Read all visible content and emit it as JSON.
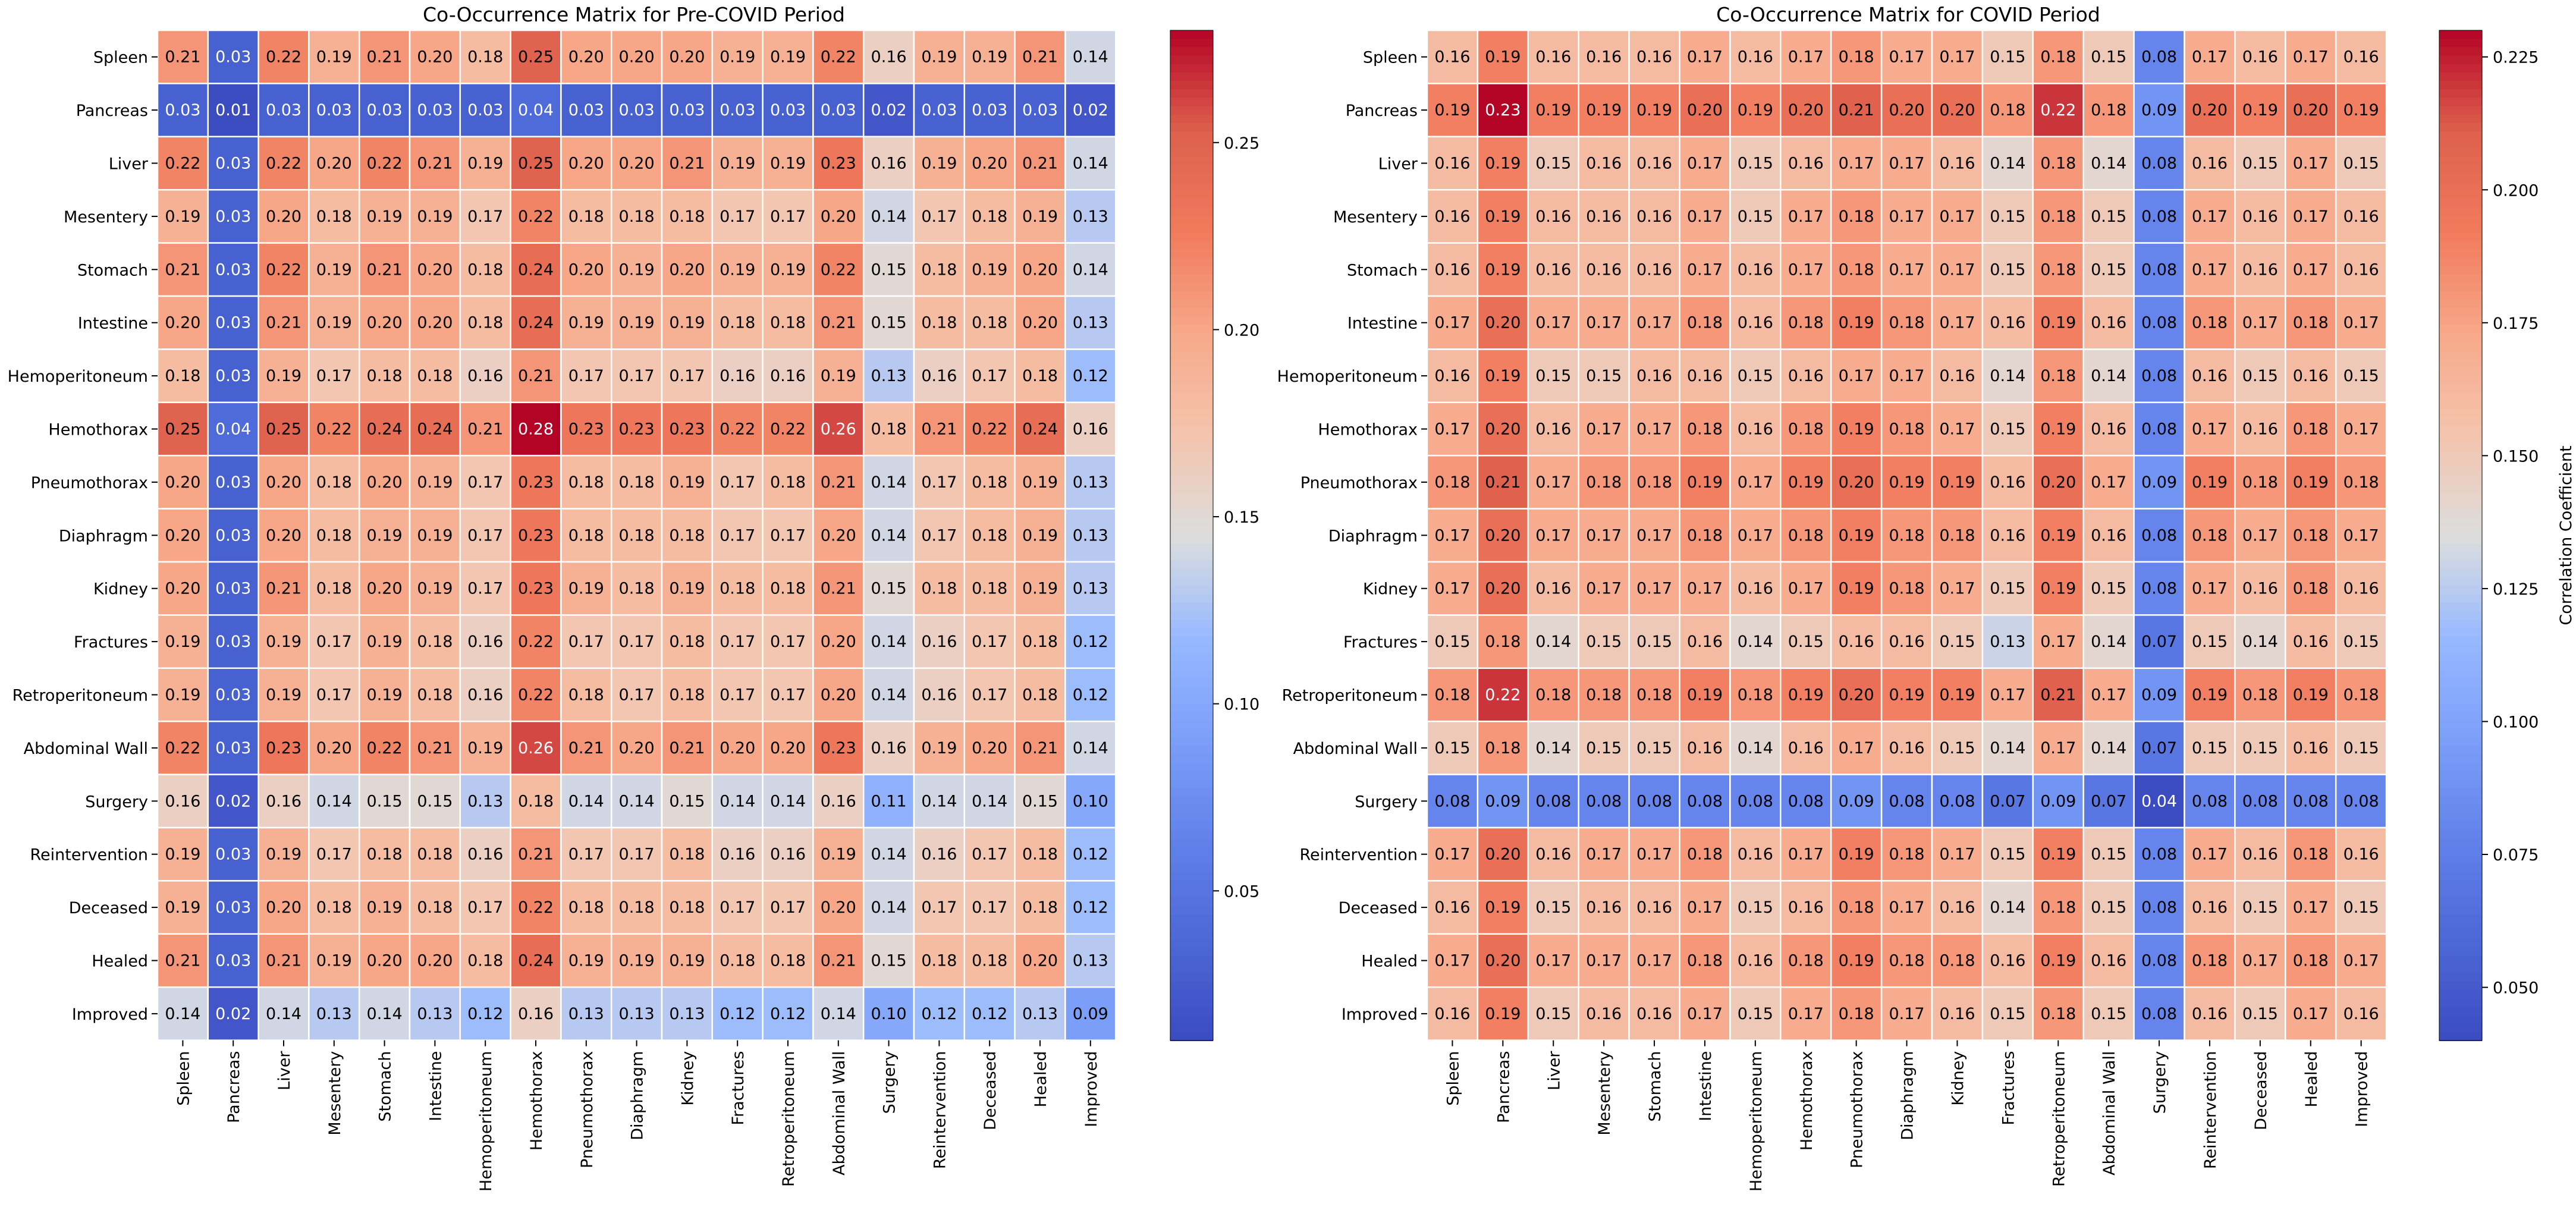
{
  "labels": [
    "Spleen",
    "Pancreas",
    "Liver",
    "Mesentery",
    "Stomach",
    "Intestine",
    "Hemoperitoneum",
    "Hemothorax",
    "Pneumothorax",
    "Diaphragm",
    "Kidney",
    "Fractures",
    "Retroperitoneum",
    "Abdominal Wall",
    "Surgery",
    "Reintervention",
    "Deceased",
    "Healed",
    "Improved"
  ],
  "colors": {
    "low": "#3b4cc0",
    "mid": "#dddddd",
    "high": "#b40426",
    "grid": "#ffffff",
    "text": "#000000"
  },
  "chart_data": [
    {
      "type": "heatmap",
      "title": "Co-Occurrence Matrix for Pre-COVID Period",
      "colorbar": {
        "vmin": 0.01,
        "vmax": 0.28,
        "ticks": [
          0.05,
          0.1,
          0.15,
          0.2,
          0.25
        ],
        "tick_labels": [
          "0.05",
          "0.10",
          "0.15",
          "0.20",
          "0.25"
        ],
        "label": ""
      },
      "values": [
        [
          0.21,
          0.03,
          0.22,
          0.19,
          0.21,
          0.2,
          0.18,
          0.25,
          0.2,
          0.2,
          0.2,
          0.19,
          0.19,
          0.22,
          0.16,
          0.19,
          0.19,
          0.21,
          0.14
        ],
        [
          0.03,
          0.01,
          0.03,
          0.03,
          0.03,
          0.03,
          0.03,
          0.04,
          0.03,
          0.03,
          0.03,
          0.03,
          0.03,
          0.03,
          0.02,
          0.03,
          0.03,
          0.03,
          0.02
        ],
        [
          0.22,
          0.03,
          0.22,
          0.2,
          0.22,
          0.21,
          0.19,
          0.25,
          0.2,
          0.2,
          0.21,
          0.19,
          0.19,
          0.23,
          0.16,
          0.19,
          0.2,
          0.21,
          0.14
        ],
        [
          0.19,
          0.03,
          0.2,
          0.18,
          0.19,
          0.19,
          0.17,
          0.22,
          0.18,
          0.18,
          0.18,
          0.17,
          0.17,
          0.2,
          0.14,
          0.17,
          0.18,
          0.19,
          0.13
        ],
        [
          0.21,
          0.03,
          0.22,
          0.19,
          0.21,
          0.2,
          0.18,
          0.24,
          0.2,
          0.19,
          0.2,
          0.19,
          0.19,
          0.22,
          0.15,
          0.18,
          0.19,
          0.2,
          0.14
        ],
        [
          0.2,
          0.03,
          0.21,
          0.19,
          0.2,
          0.2,
          0.18,
          0.24,
          0.19,
          0.19,
          0.19,
          0.18,
          0.18,
          0.21,
          0.15,
          0.18,
          0.18,
          0.2,
          0.13
        ],
        [
          0.18,
          0.03,
          0.19,
          0.17,
          0.18,
          0.18,
          0.16,
          0.21,
          0.17,
          0.17,
          0.17,
          0.16,
          0.16,
          0.19,
          0.13,
          0.16,
          0.17,
          0.18,
          0.12
        ],
        [
          0.25,
          0.04,
          0.25,
          0.22,
          0.24,
          0.24,
          0.21,
          0.28,
          0.23,
          0.23,
          0.23,
          0.22,
          0.22,
          0.26,
          0.18,
          0.21,
          0.22,
          0.24,
          0.16
        ],
        [
          0.2,
          0.03,
          0.2,
          0.18,
          0.2,
          0.19,
          0.17,
          0.23,
          0.18,
          0.18,
          0.19,
          0.17,
          0.18,
          0.21,
          0.14,
          0.17,
          0.18,
          0.19,
          0.13
        ],
        [
          0.2,
          0.03,
          0.2,
          0.18,
          0.19,
          0.19,
          0.17,
          0.23,
          0.18,
          0.18,
          0.18,
          0.17,
          0.17,
          0.2,
          0.14,
          0.17,
          0.18,
          0.19,
          0.13
        ],
        [
          0.2,
          0.03,
          0.21,
          0.18,
          0.2,
          0.19,
          0.17,
          0.23,
          0.19,
          0.18,
          0.19,
          0.18,
          0.18,
          0.21,
          0.15,
          0.18,
          0.18,
          0.19,
          0.13
        ],
        [
          0.19,
          0.03,
          0.19,
          0.17,
          0.19,
          0.18,
          0.16,
          0.22,
          0.17,
          0.17,
          0.18,
          0.17,
          0.17,
          0.2,
          0.14,
          0.16,
          0.17,
          0.18,
          0.12
        ],
        [
          0.19,
          0.03,
          0.19,
          0.17,
          0.19,
          0.18,
          0.16,
          0.22,
          0.18,
          0.17,
          0.18,
          0.17,
          0.17,
          0.2,
          0.14,
          0.16,
          0.17,
          0.18,
          0.12
        ],
        [
          0.22,
          0.03,
          0.23,
          0.2,
          0.22,
          0.21,
          0.19,
          0.26,
          0.21,
          0.2,
          0.21,
          0.2,
          0.2,
          0.23,
          0.16,
          0.19,
          0.2,
          0.21,
          0.14
        ],
        [
          0.16,
          0.02,
          0.16,
          0.14,
          0.15,
          0.15,
          0.13,
          0.18,
          0.14,
          0.14,
          0.15,
          0.14,
          0.14,
          0.16,
          0.11,
          0.14,
          0.14,
          0.15,
          0.1
        ],
        [
          0.19,
          0.03,
          0.19,
          0.17,
          0.18,
          0.18,
          0.16,
          0.21,
          0.17,
          0.17,
          0.18,
          0.16,
          0.16,
          0.19,
          0.14,
          0.16,
          0.17,
          0.18,
          0.12
        ],
        [
          0.19,
          0.03,
          0.2,
          0.18,
          0.19,
          0.18,
          0.17,
          0.22,
          0.18,
          0.18,
          0.18,
          0.17,
          0.17,
          0.2,
          0.14,
          0.17,
          0.17,
          0.18,
          0.12
        ],
        [
          0.21,
          0.03,
          0.21,
          0.19,
          0.2,
          0.2,
          0.18,
          0.24,
          0.19,
          0.19,
          0.19,
          0.18,
          0.18,
          0.21,
          0.15,
          0.18,
          0.18,
          0.2,
          0.13
        ],
        [
          0.14,
          0.02,
          0.14,
          0.13,
          0.14,
          0.13,
          0.12,
          0.16,
          0.13,
          0.13,
          0.13,
          0.12,
          0.12,
          0.14,
          0.1,
          0.12,
          0.12,
          0.13,
          0.09
        ]
      ]
    },
    {
      "type": "heatmap",
      "title": "Co-Occurrence Matrix for COVID Period",
      "colorbar": {
        "vmin": 0.04,
        "vmax": 0.23,
        "ticks": [
          0.05,
          0.075,
          0.1,
          0.125,
          0.15,
          0.175,
          0.2,
          0.225
        ],
        "tick_labels": [
          "0.050",
          "0.075",
          "0.100",
          "0.125",
          "0.150",
          "0.175",
          "0.200",
          "0.225"
        ],
        "label": "Correlation Coefficient"
      },
      "values": [
        [
          0.16,
          0.19,
          0.16,
          0.16,
          0.16,
          0.17,
          0.16,
          0.17,
          0.18,
          0.17,
          0.17,
          0.15,
          0.18,
          0.15,
          0.08,
          0.17,
          0.16,
          0.17,
          0.16
        ],
        [
          0.19,
          0.23,
          0.19,
          0.19,
          0.19,
          0.2,
          0.19,
          0.2,
          0.21,
          0.2,
          0.2,
          0.18,
          0.22,
          0.18,
          0.09,
          0.2,
          0.19,
          0.2,
          0.19
        ],
        [
          0.16,
          0.19,
          0.15,
          0.16,
          0.16,
          0.17,
          0.15,
          0.16,
          0.17,
          0.17,
          0.16,
          0.14,
          0.18,
          0.14,
          0.08,
          0.16,
          0.15,
          0.17,
          0.15
        ],
        [
          0.16,
          0.19,
          0.16,
          0.16,
          0.16,
          0.17,
          0.15,
          0.17,
          0.18,
          0.17,
          0.17,
          0.15,
          0.18,
          0.15,
          0.08,
          0.17,
          0.16,
          0.17,
          0.16
        ],
        [
          0.16,
          0.19,
          0.16,
          0.16,
          0.16,
          0.17,
          0.16,
          0.17,
          0.18,
          0.17,
          0.17,
          0.15,
          0.18,
          0.15,
          0.08,
          0.17,
          0.16,
          0.17,
          0.16
        ],
        [
          0.17,
          0.2,
          0.17,
          0.17,
          0.17,
          0.18,
          0.16,
          0.18,
          0.19,
          0.18,
          0.17,
          0.16,
          0.19,
          0.16,
          0.08,
          0.18,
          0.17,
          0.18,
          0.17
        ],
        [
          0.16,
          0.19,
          0.15,
          0.15,
          0.16,
          0.16,
          0.15,
          0.16,
          0.17,
          0.17,
          0.16,
          0.14,
          0.18,
          0.14,
          0.08,
          0.16,
          0.15,
          0.16,
          0.15
        ],
        [
          0.17,
          0.2,
          0.16,
          0.17,
          0.17,
          0.18,
          0.16,
          0.18,
          0.19,
          0.18,
          0.17,
          0.15,
          0.19,
          0.16,
          0.08,
          0.17,
          0.16,
          0.18,
          0.17
        ],
        [
          0.18,
          0.21,
          0.17,
          0.18,
          0.18,
          0.19,
          0.17,
          0.19,
          0.2,
          0.19,
          0.19,
          0.16,
          0.2,
          0.17,
          0.09,
          0.19,
          0.18,
          0.19,
          0.18
        ],
        [
          0.17,
          0.2,
          0.17,
          0.17,
          0.17,
          0.18,
          0.17,
          0.18,
          0.19,
          0.18,
          0.18,
          0.16,
          0.19,
          0.16,
          0.08,
          0.18,
          0.17,
          0.18,
          0.17
        ],
        [
          0.17,
          0.2,
          0.16,
          0.17,
          0.17,
          0.17,
          0.16,
          0.17,
          0.19,
          0.18,
          0.17,
          0.15,
          0.19,
          0.15,
          0.08,
          0.17,
          0.16,
          0.18,
          0.16
        ],
        [
          0.15,
          0.18,
          0.14,
          0.15,
          0.15,
          0.16,
          0.14,
          0.15,
          0.16,
          0.16,
          0.15,
          0.13,
          0.17,
          0.14,
          0.07,
          0.15,
          0.14,
          0.16,
          0.15
        ],
        [
          0.18,
          0.22,
          0.18,
          0.18,
          0.18,
          0.19,
          0.18,
          0.19,
          0.2,
          0.19,
          0.19,
          0.17,
          0.21,
          0.17,
          0.09,
          0.19,
          0.18,
          0.19,
          0.18
        ],
        [
          0.15,
          0.18,
          0.14,
          0.15,
          0.15,
          0.16,
          0.14,
          0.16,
          0.17,
          0.16,
          0.15,
          0.14,
          0.17,
          0.14,
          0.07,
          0.15,
          0.15,
          0.16,
          0.15
        ],
        [
          0.08,
          0.09,
          0.08,
          0.08,
          0.08,
          0.08,
          0.08,
          0.08,
          0.09,
          0.08,
          0.08,
          0.07,
          0.09,
          0.07,
          0.04,
          0.08,
          0.08,
          0.08,
          0.08
        ],
        [
          0.17,
          0.2,
          0.16,
          0.17,
          0.17,
          0.18,
          0.16,
          0.17,
          0.19,
          0.18,
          0.17,
          0.15,
          0.19,
          0.15,
          0.08,
          0.17,
          0.16,
          0.18,
          0.16
        ],
        [
          0.16,
          0.19,
          0.15,
          0.16,
          0.16,
          0.17,
          0.15,
          0.16,
          0.18,
          0.17,
          0.16,
          0.14,
          0.18,
          0.15,
          0.08,
          0.16,
          0.15,
          0.17,
          0.15
        ],
        [
          0.17,
          0.2,
          0.17,
          0.17,
          0.17,
          0.18,
          0.16,
          0.18,
          0.19,
          0.18,
          0.18,
          0.16,
          0.19,
          0.16,
          0.08,
          0.18,
          0.17,
          0.18,
          0.17
        ],
        [
          0.16,
          0.19,
          0.15,
          0.16,
          0.16,
          0.17,
          0.15,
          0.17,
          0.18,
          0.17,
          0.16,
          0.15,
          0.18,
          0.15,
          0.08,
          0.16,
          0.15,
          0.17,
          0.16
        ]
      ]
    }
  ]
}
